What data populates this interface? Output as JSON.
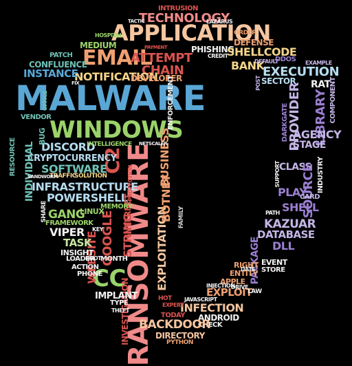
{
  "palette": {
    "red": "#d9534f",
    "pink": "#f08a8a",
    "orange": "#f0a070",
    "peach": "#f5c6a0",
    "yellow": "#f4d58a",
    "green": "#9bd36a",
    "lightgreen": "#c6e6a0",
    "teal": "#6fc1b5",
    "cyan": "#8fd3e6",
    "blue": "#5aa7d6",
    "lightblue": "#b6dcef",
    "purple": "#9a7fd1",
    "lavender": "#c4b5e6",
    "white": "#f2f2f2",
    "gray": "#cfcfcf"
  },
  "words": [
    {
      "text": "MALWARE",
      "color": "blue"
    },
    {
      "text": "APPLICATION",
      "color": "peach"
    },
    {
      "text": "EMAIL",
      "color": "orange"
    },
    {
      "text": "WINDOWS",
      "color": "green"
    },
    {
      "text": "RANSOMWARE",
      "color": "pink"
    },
    {
      "text": "C2",
      "color": "red"
    },
    {
      "text": "CC",
      "color": "green"
    },
    {
      "text": "TECHNOLOGY",
      "color": "pink"
    },
    {
      "text": "INTRUSION",
      "color": "red"
    },
    {
      "text": "ATTEMPT",
      "color": "red"
    },
    {
      "text": "CHAIN",
      "color": "red"
    },
    {
      "text": "NOTIFICATION",
      "color": "yellow"
    },
    {
      "text": "DEVELOPER",
      "color": "orange"
    },
    {
      "text": "ENFORCEMENT",
      "color": "white"
    },
    {
      "text": "INFRASTRUCTURE",
      "color": "lightblue"
    },
    {
      "text": "POWERSHELL",
      "color": "lightblue"
    },
    {
      "text": "SOFTWARE",
      "color": "teal"
    },
    {
      "text": "DISCORD",
      "color": "lightblue"
    },
    {
      "text": "CRYPTOCURRENCY",
      "color": "lightblue"
    },
    {
      "text": "INDIVIDUAL",
      "color": "teal"
    },
    {
      "text": "INSTANCE",
      "color": "blue"
    },
    {
      "text": "CONFLUENCE",
      "color": "teal"
    },
    {
      "text": "PATCH",
      "color": "teal"
    },
    {
      "text": "MEDIUM",
      "color": "green"
    },
    {
      "text": "HOSPITAL",
      "color": "green"
    },
    {
      "text": "TACTIC",
      "color": "white"
    },
    {
      "text": "PAYMENT",
      "color": "red"
    },
    {
      "text": "LAZARUS",
      "color": "white"
    },
    {
      "text": "ORDER",
      "color": "orange"
    },
    {
      "text": "DEFENSE",
      "color": "orange"
    },
    {
      "text": "PHISHING",
      "color": "white"
    },
    {
      "text": "SHELLCODE",
      "color": "yellow"
    },
    {
      "text": "CREDIT",
      "color": "white"
    },
    {
      "text": "BANK",
      "color": "yellow"
    },
    {
      "text": "DEFAULT",
      "color": "lavender"
    },
    {
      "text": "DDOS",
      "color": "purple"
    },
    {
      "text": "EXECUTION",
      "color": "lightblue"
    },
    {
      "text": "SECTOR",
      "color": "lightblue"
    },
    {
      "text": "RAT",
      "color": "white"
    },
    {
      "text": "POST",
      "color": "lavender"
    },
    {
      "text": "PROVIDER",
      "color": "lavender"
    },
    {
      "text": "LIBRARY",
      "color": "purple"
    },
    {
      "text": "COMPONENT",
      "color": "lavender"
    },
    {
      "text": "DARKGATE",
      "color": "purple"
    },
    {
      "text": "AGENCY",
      "color": "lavender"
    },
    {
      "text": "STAGE",
      "color": "lavender"
    },
    {
      "text": "INDUSTRY",
      "color": "white"
    },
    {
      "text": "CLASS",
      "color": "lavender"
    },
    {
      "text": "SOURCE",
      "color": "purple"
    },
    {
      "text": "PLAY",
      "color": "purple"
    },
    {
      "text": "CARD",
      "color": "lavender"
    },
    {
      "text": "SHELL",
      "color": "purple"
    },
    {
      "text": "KAZUAR",
      "color": "lavender"
    },
    {
      "text": "DATABASE",
      "color": "lavender"
    },
    {
      "text": "DLL",
      "color": "purple"
    },
    {
      "text": "PACKAGE",
      "color": "purple"
    },
    {
      "text": "EVENT",
      "color": "white"
    },
    {
      "text": "STORE",
      "color": "white"
    },
    {
      "text": "RIGHT",
      "color": "orange"
    },
    {
      "text": "ENTITY",
      "color": "orange"
    },
    {
      "text": "APPLE",
      "color": "orange"
    },
    {
      "text": "EXPLOIT",
      "color": "orange"
    },
    {
      "text": "INFECTION",
      "color": "peach"
    },
    {
      "text": "ANDROID",
      "color": "white"
    },
    {
      "text": "CHECK",
      "color": "white"
    },
    {
      "text": "BACKDOOR",
      "color": "peach"
    },
    {
      "text": "DIRECTORY",
      "color": "peach"
    },
    {
      "text": "PYTHON",
      "color": "orange"
    },
    {
      "text": "TODAY",
      "color": "red"
    },
    {
      "text": "EXPERT",
      "color": "red"
    },
    {
      "text": "JAVASCRIPT",
      "color": "white"
    },
    {
      "text": "LAW",
      "color": "white"
    },
    {
      "text": "EXPLOITATION",
      "color": "peach"
    },
    {
      "text": "BUSINESS",
      "color": "orange"
    },
    {
      "text": "BOTNET",
      "color": "orange"
    },
    {
      "text": "FAMILY",
      "color": "gray"
    },
    {
      "text": "STRING",
      "color": "red"
    },
    {
      "text": "INTERNET",
      "color": "red"
    },
    {
      "text": "GOOGLE",
      "color": "red"
    },
    {
      "text": "WEBSITE",
      "color": "red"
    },
    {
      "text": "INVESTIGATION",
      "color": "red"
    },
    {
      "text": "IMPLANT",
      "color": "white"
    },
    {
      "text": "TYPE",
      "color": "white"
    },
    {
      "text": "THEFT",
      "color": "white"
    },
    {
      "text": "MONTH",
      "color": "white"
    },
    {
      "text": "MEMORY",
      "color": "green"
    },
    {
      "text": "LINUX",
      "color": "green"
    },
    {
      "text": "GANG",
      "color": "green"
    },
    {
      "text": "FRAMEWORK",
      "color": "green"
    },
    {
      "text": "VIPER",
      "color": "white"
    },
    {
      "text": "TASK",
      "color": "lightgreen"
    },
    {
      "text": "INSIGHT",
      "color": "white"
    },
    {
      "text": "LOADER",
      "color": "white"
    },
    {
      "text": "ACTION",
      "color": "white"
    },
    {
      "text": "PHONE",
      "color": "white"
    },
    {
      "text": "SOLUTION",
      "color": "yellow"
    },
    {
      "text": "TRAFFIC",
      "color": "yellow"
    },
    {
      "text": "SANDWORM",
      "color": "white"
    },
    {
      "text": "VENDOR",
      "color": "teal"
    },
    {
      "text": "BUG",
      "color": "teal"
    },
    {
      "text": "RESOURCE",
      "color": "teal"
    },
    {
      "text": "INTELLIGENCE",
      "color": "green"
    },
    {
      "text": "SHARE",
      "color": "white"
    },
    {
      "text": "PROTECTION",
      "color": "red"
    },
    {
      "text": "OFFICE",
      "color": "teal"
    },
    {
      "text": "FIX",
      "color": "white"
    },
    {
      "text": "ROOT",
      "color": "white"
    },
    {
      "text": "KEY",
      "color": "white"
    },
    {
      "text": "NETSCALER",
      "color": "white"
    },
    {
      "text": "EXAMPLE",
      "color": "lavender"
    },
    {
      "text": "PATH",
      "color": "white"
    },
    {
      "text": "INJECTION",
      "color": "white"
    },
    {
      "text": "SUPPORT",
      "color": "white"
    },
    {
      "text": "DATE",
      "color": "white"
    },
    {
      "text": "DRIVE",
      "color": "white"
    },
    {
      "text": "HOT",
      "color": "red"
    }
  ]
}
